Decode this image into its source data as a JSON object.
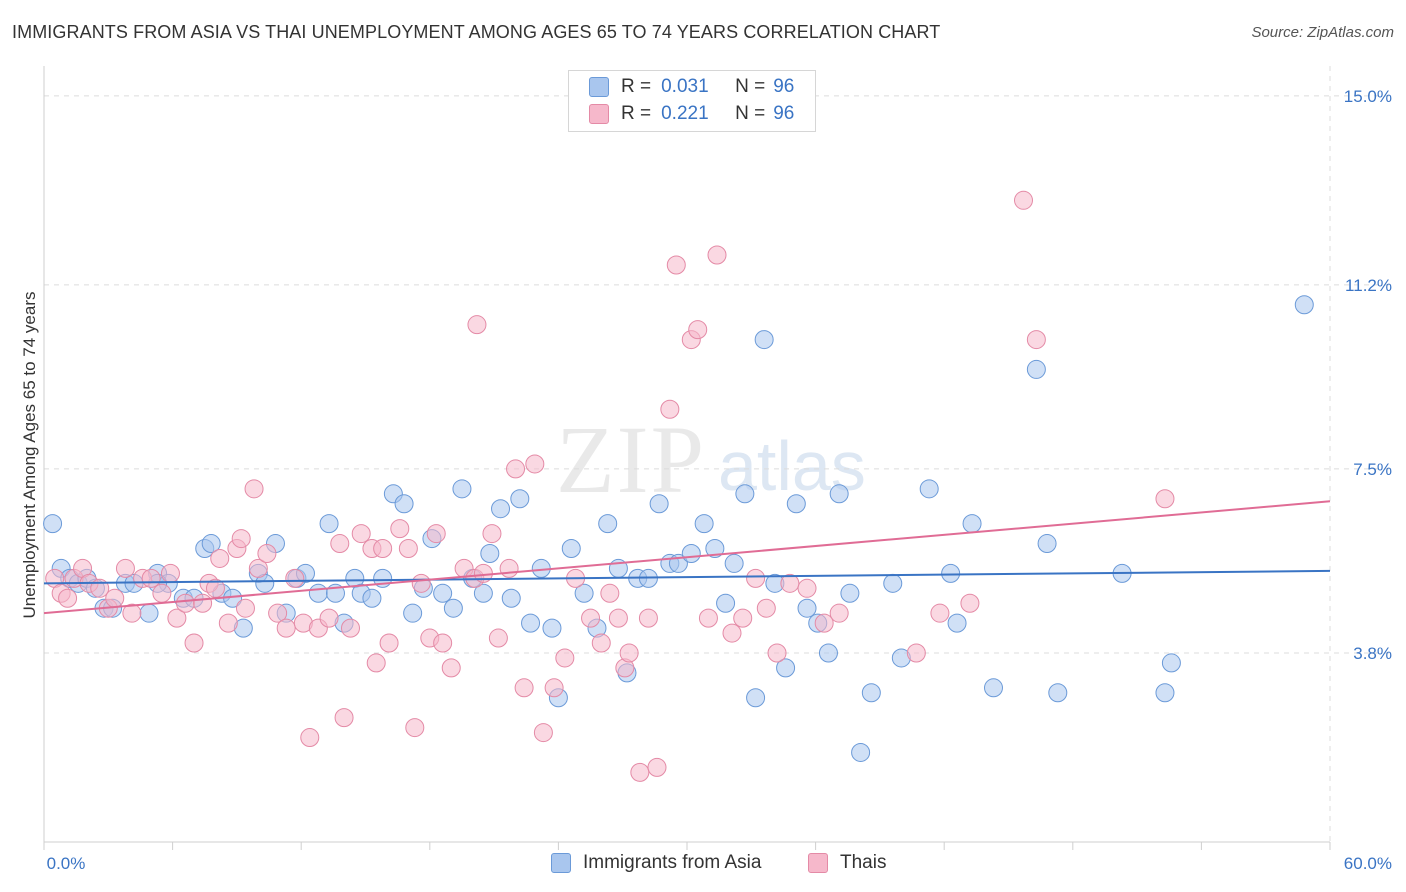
{
  "title": "IMMIGRANTS FROM ASIA VS THAI UNEMPLOYMENT AMONG AGES 65 TO 74 YEARS CORRELATION CHART",
  "source": "Source: ZipAtlas.com",
  "watermark": {
    "zip": "ZIP",
    "atlas": "atlas"
  },
  "legend": {
    "rows": [
      {
        "r_label": "R =",
        "r_value": "0.031",
        "n_label": "N =",
        "n_value": "96"
      },
      {
        "r_label": "R =",
        "r_value": "0.221",
        "n_label": "N =",
        "n_value": "96"
      }
    ],
    "bottom": [
      "Immigrants from Asia",
      "Thais"
    ]
  },
  "colors": {
    "blue_fill": "#a9c6ee",
    "blue_stroke": "#6b9ad8",
    "blue_line": "#3a74c4",
    "pink_fill": "#f6b8cb",
    "pink_stroke": "#e48aa6",
    "pink_line": "#e06c95",
    "tick_label": "#3a74c4",
    "grid": "#dcdcdc"
  },
  "chart_data": {
    "type": "scatter",
    "title": "IMMIGRANTS FROM ASIA VS THAI UNEMPLOYMENT AMONG AGES 65 TO 74 YEARS CORRELATION CHART",
    "xlabel": "",
    "ylabel": "Unemployment Among Ages 65 to 74 years",
    "xlim": [
      0,
      60
    ],
    "ylim": [
      0,
      15.6
    ],
    "x_tick_labels": [
      "0.0%",
      "60.0%"
    ],
    "y_ticks": [
      3.8,
      7.5,
      11.2,
      15.0
    ],
    "y_tick_labels": [
      "3.8%",
      "7.5%",
      "11.2%",
      "15.0%"
    ],
    "grid": true,
    "legend_position": "top-center",
    "series": [
      {
        "name": "Immigrants from Asia",
        "r": 0.031,
        "n": 96,
        "trend": {
          "x": [
            0,
            60
          ],
          "y": [
            5.2,
            5.45
          ]
        },
        "points": [
          [
            0.4,
            6.4
          ],
          [
            0.8,
            5.5
          ],
          [
            1.2,
            5.3
          ],
          [
            1.6,
            5.2
          ],
          [
            2.0,
            5.3
          ],
          [
            2.4,
            5.1
          ],
          [
            2.8,
            4.7
          ],
          [
            3.2,
            4.7
          ],
          [
            3.8,
            5.2
          ],
          [
            4.2,
            5.2
          ],
          [
            4.9,
            4.6
          ],
          [
            5.3,
            5.4
          ],
          [
            5.8,
            5.2
          ],
          [
            6.5,
            4.9
          ],
          [
            7.0,
            4.9
          ],
          [
            7.5,
            5.9
          ],
          [
            7.8,
            6.0
          ],
          [
            8.3,
            5.0
          ],
          [
            8.8,
            4.9
          ],
          [
            9.3,
            4.3
          ],
          [
            10.0,
            5.4
          ],
          [
            10.3,
            5.2
          ],
          [
            10.8,
            6.0
          ],
          [
            11.3,
            4.6
          ],
          [
            11.8,
            5.3
          ],
          [
            12.2,
            5.4
          ],
          [
            12.8,
            5.0
          ],
          [
            13.3,
            6.4
          ],
          [
            13.6,
            5.0
          ],
          [
            14.0,
            4.4
          ],
          [
            14.5,
            5.3
          ],
          [
            14.8,
            5.0
          ],
          [
            15.3,
            4.9
          ],
          [
            15.8,
            5.3
          ],
          [
            16.3,
            7.0
          ],
          [
            16.8,
            6.8
          ],
          [
            17.2,
            4.6
          ],
          [
            17.7,
            5.1
          ],
          [
            18.1,
            6.1
          ],
          [
            18.6,
            5.0
          ],
          [
            19.1,
            4.7
          ],
          [
            19.5,
            7.1
          ],
          [
            20.0,
            5.3
          ],
          [
            20.5,
            5.0
          ],
          [
            20.8,
            5.8
          ],
          [
            21.3,
            6.7
          ],
          [
            21.8,
            4.9
          ],
          [
            22.2,
            6.9
          ],
          [
            22.7,
            4.4
          ],
          [
            23.2,
            5.5
          ],
          [
            23.7,
            4.3
          ],
          [
            24.0,
            2.9
          ],
          [
            24.6,
            5.9
          ],
          [
            25.2,
            5.0
          ],
          [
            25.8,
            4.3
          ],
          [
            26.3,
            6.4
          ],
          [
            26.8,
            5.5
          ],
          [
            27.2,
            3.4
          ],
          [
            27.7,
            5.3
          ],
          [
            28.2,
            5.3
          ],
          [
            28.7,
            6.8
          ],
          [
            29.2,
            5.6
          ],
          [
            29.6,
            5.6
          ],
          [
            30.2,
            5.8
          ],
          [
            30.8,
            6.4
          ],
          [
            31.3,
            5.9
          ],
          [
            31.8,
            4.8
          ],
          [
            32.2,
            5.6
          ],
          [
            32.7,
            7.0
          ],
          [
            33.2,
            2.9
          ],
          [
            33.6,
            10.1
          ],
          [
            34.1,
            5.2
          ],
          [
            34.6,
            3.5
          ],
          [
            35.1,
            6.8
          ],
          [
            35.6,
            4.7
          ],
          [
            36.1,
            4.4
          ],
          [
            36.6,
            3.8
          ],
          [
            37.1,
            7.0
          ],
          [
            37.6,
            5.0
          ],
          [
            38.1,
            1.8
          ],
          [
            38.6,
            3.0
          ],
          [
            39.6,
            5.2
          ],
          [
            40.0,
            3.7
          ],
          [
            41.3,
            7.1
          ],
          [
            42.3,
            5.4
          ],
          [
            42.6,
            4.4
          ],
          [
            43.3,
            6.4
          ],
          [
            44.3,
            3.1
          ],
          [
            46.3,
            9.5
          ],
          [
            46.8,
            6.0
          ],
          [
            47.3,
            3.0
          ],
          [
            50.3,
            5.4
          ],
          [
            52.3,
            3.0
          ],
          [
            52.6,
            3.6
          ],
          [
            58.8,
            10.8
          ],
          [
            5.3,
            5.2
          ]
        ]
      },
      {
        "name": "Thais",
        "r": 0.221,
        "n": 96,
        "trend": {
          "x": [
            0,
            60
          ],
          "y": [
            4.6,
            6.85
          ]
        },
        "points": [
          [
            0.5,
            5.3
          ],
          [
            0.8,
            5.0
          ],
          [
            1.1,
            4.9
          ],
          [
            1.4,
            5.3
          ],
          [
            1.8,
            5.5
          ],
          [
            2.1,
            5.2
          ],
          [
            2.6,
            5.1
          ],
          [
            3.0,
            4.7
          ],
          [
            3.3,
            4.9
          ],
          [
            3.8,
            5.5
          ],
          [
            4.1,
            4.6
          ],
          [
            4.6,
            5.3
          ],
          [
            5.0,
            5.3
          ],
          [
            5.5,
            5.0
          ],
          [
            5.9,
            5.4
          ],
          [
            6.2,
            4.5
          ],
          [
            6.6,
            4.8
          ],
          [
            7.0,
            4.0
          ],
          [
            7.4,
            4.8
          ],
          [
            7.7,
            5.2
          ],
          [
            8.0,
            5.1
          ],
          [
            8.2,
            5.7
          ],
          [
            8.6,
            4.4
          ],
          [
            9.0,
            5.9
          ],
          [
            9.4,
            4.7
          ],
          [
            9.8,
            7.1
          ],
          [
            10.0,
            5.5
          ],
          [
            10.4,
            5.8
          ],
          [
            10.9,
            4.6
          ],
          [
            11.3,
            4.3
          ],
          [
            11.7,
            5.3
          ],
          [
            12.1,
            4.4
          ],
          [
            12.4,
            2.1
          ],
          [
            12.8,
            4.3
          ],
          [
            13.3,
            4.5
          ],
          [
            13.8,
            6.0
          ],
          [
            14.0,
            2.5
          ],
          [
            14.3,
            4.3
          ],
          [
            14.8,
            6.2
          ],
          [
            15.3,
            5.9
          ],
          [
            15.5,
            3.6
          ],
          [
            15.8,
            5.9
          ],
          [
            16.1,
            4.0
          ],
          [
            16.6,
            6.3
          ],
          [
            17.0,
            5.9
          ],
          [
            17.3,
            2.3
          ],
          [
            17.6,
            5.2
          ],
          [
            18.0,
            4.1
          ],
          [
            18.3,
            6.2
          ],
          [
            18.6,
            4.0
          ],
          [
            19.0,
            3.5
          ],
          [
            19.6,
            5.5
          ],
          [
            20.1,
            5.3
          ],
          [
            20.5,
            5.4
          ],
          [
            20.9,
            6.2
          ],
          [
            21.2,
            4.1
          ],
          [
            21.7,
            5.5
          ],
          [
            22.0,
            7.5
          ],
          [
            22.4,
            3.1
          ],
          [
            22.9,
            7.6
          ],
          [
            23.3,
            2.2
          ],
          [
            23.8,
            3.1
          ],
          [
            24.3,
            3.7
          ],
          [
            24.8,
            5.3
          ],
          [
            25.5,
            4.5
          ],
          [
            26.0,
            4.0
          ],
          [
            26.4,
            5.0
          ],
          [
            26.8,
            4.5
          ],
          [
            27.1,
            3.5
          ],
          [
            27.3,
            3.8
          ],
          [
            27.8,
            1.4
          ],
          [
            28.2,
            4.5
          ],
          [
            28.6,
            1.5
          ],
          [
            29.2,
            8.7
          ],
          [
            29.5,
            11.6
          ],
          [
            30.2,
            10.1
          ],
          [
            30.5,
            10.3
          ],
          [
            31.0,
            4.5
          ],
          [
            31.4,
            11.8
          ],
          [
            32.1,
            4.2
          ],
          [
            32.6,
            4.5
          ],
          [
            33.2,
            5.3
          ],
          [
            33.7,
            4.7
          ],
          [
            34.2,
            3.8
          ],
          [
            34.8,
            5.2
          ],
          [
            35.6,
            5.1
          ],
          [
            36.4,
            4.4
          ],
          [
            37.1,
            4.6
          ],
          [
            40.7,
            3.8
          ],
          [
            41.8,
            4.6
          ],
          [
            43.2,
            4.8
          ],
          [
            45.7,
            12.9
          ],
          [
            46.3,
            10.1
          ],
          [
            52.3,
            6.9
          ],
          [
            20.2,
            10.4
          ],
          [
            9.2,
            6.1
          ]
        ]
      }
    ]
  }
}
